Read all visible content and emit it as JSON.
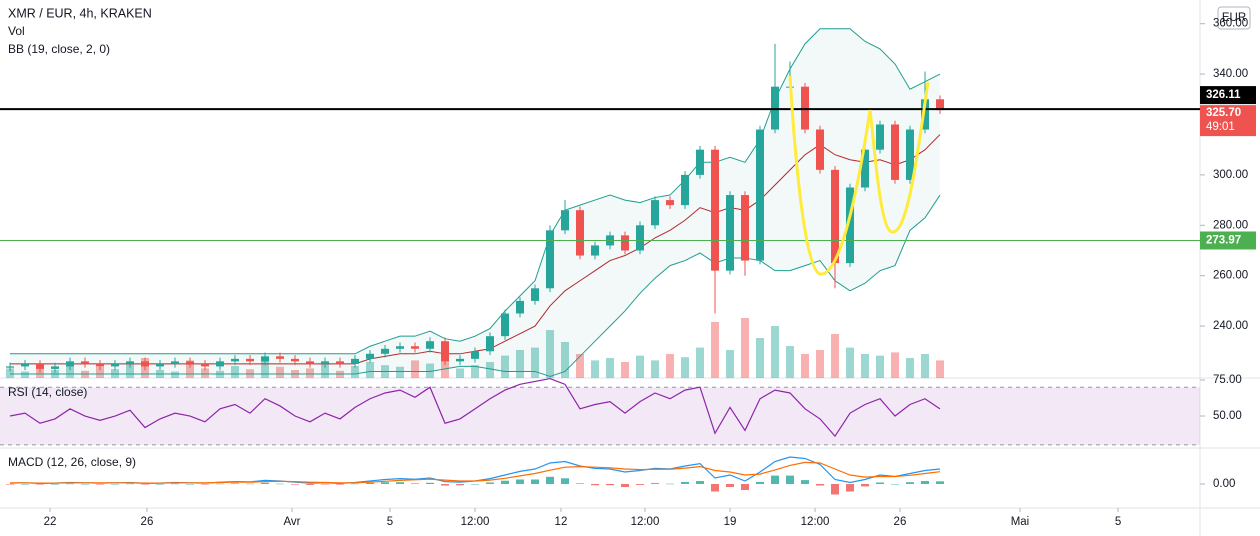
{
  "currency": "EUR",
  "chart_data": [
    {
      "type": "candlestick",
      "title": "XMR / EUR, 4h, KRAKEN",
      "xlim": [
        -0.667,
        79.333
      ],
      "xticks": [
        {
          "value": 2.67,
          "label": "22"
        },
        {
          "value": 9.13,
          "label": "26"
        },
        {
          "value": 18.8,
          "label": "Avr"
        },
        {
          "value": 25.33,
          "label": "5"
        },
        {
          "value": 31,
          "label": "12:00"
        },
        {
          "value": 36.73,
          "label": "12"
        },
        {
          "value": 42.33,
          "label": "12:00"
        },
        {
          "value": 48,
          "label": "19"
        },
        {
          "value": 53.67,
          "label": "12:00"
        },
        {
          "value": 59.33,
          "label": "26"
        },
        {
          "value": 67.33,
          "label": "Mai"
        },
        {
          "value": 73.87,
          "label": "5"
        }
      ],
      "ylim": [
        219.4,
        369.4
      ],
      "yticks": [
        {
          "value": 360,
          "label": "360.00"
        },
        {
          "value": 340,
          "label": "340.00"
        },
        {
          "value": 300,
          "label": "300.00"
        },
        {
          "value": 280,
          "label": "280.00"
        },
        {
          "value": 260,
          "label": "260.00"
        },
        {
          "value": 240,
          "label": "240.00"
        }
      ],
      "colors": {
        "up": "#26a69a",
        "down": "#ef5350"
      },
      "open": [
        223.5,
        224,
        225,
        223,
        224,
        226,
        225,
        224,
        225,
        226,
        224,
        225,
        226,
        225,
        224,
        226,
        227,
        226,
        228,
        227,
        226,
        225,
        226,
        225,
        227,
        229,
        231,
        232,
        231,
        234,
        226,
        227,
        230,
        236,
        245,
        250,
        255,
        278,
        286,
        268,
        272,
        276,
        270,
        280,
        290,
        288,
        300,
        310,
        262,
        292,
        266,
        318,
        335,
        335,
        318,
        302,
        265,
        295,
        310,
        320,
        298,
        318,
        330
      ],
      "high": [
        225.5,
        226.5,
        226.5,
        225.5,
        227.5,
        227.5,
        226.5,
        226.5,
        227.5,
        227.5,
        226.5,
        227.5,
        227.5,
        226.5,
        227.5,
        228.5,
        228.5,
        229.5,
        229.5,
        228.5,
        227.5,
        227.5,
        227.5,
        228.5,
        230.5,
        232.5,
        233.5,
        233.5,
        235.5,
        235.5,
        228.5,
        231.5,
        237.5,
        246.5,
        251.5,
        256.5,
        280,
        290,
        287.5,
        273.5,
        277.5,
        277.5,
        281.5,
        291.5,
        291.5,
        301.5,
        311.5,
        311.5,
        293.5,
        293.5,
        319.5,
        352,
        345,
        336.5,
        319.5,
        303.5,
        296.5,
        311.5,
        321.5,
        321.5,
        319.5,
        341,
        331.5
      ],
      "low": [
        222,
        222.5,
        221.5,
        221.5,
        222.5,
        223.5,
        222.5,
        222.5,
        223.5,
        222.5,
        222.5,
        223.5,
        223.5,
        222.5,
        222.5,
        224.5,
        224.5,
        224.5,
        225.5,
        224.5,
        223.5,
        223.5,
        223.5,
        223.5,
        225.5,
        227.5,
        229.5,
        229.5,
        229.5,
        224.5,
        224.5,
        225.5,
        228.5,
        234.5,
        243.5,
        248.5,
        253.5,
        276.5,
        266.5,
        266.5,
        270.5,
        268.5,
        268.5,
        278.5,
        286.5,
        286.5,
        298.5,
        245,
        260.5,
        260,
        264.5,
        316.5,
        333.5,
        316.5,
        300.5,
        255,
        263.5,
        293.5,
        308.5,
        296.5,
        296.5,
        316.5,
        324.2
      ],
      "close": [
        224,
        225,
        223,
        224,
        226,
        225,
        224,
        225,
        226,
        224,
        225,
        226,
        225,
        224,
        226,
        227,
        226,
        228,
        227,
        226,
        225,
        226,
        225,
        227,
        229,
        231,
        232,
        231,
        234,
        226,
        227,
        230,
        236,
        245,
        250,
        255,
        278,
        286,
        268,
        272,
        276,
        270,
        280,
        290,
        288,
        300,
        310,
        262,
        292,
        266,
        318,
        335,
        335,
        318,
        302,
        265,
        295,
        310,
        320,
        298,
        318,
        330,
        325.7
      ],
      "volume": {
        "name": "Vol",
        "ylim": [
          0,
          100
        ],
        "values": [
          12,
          8,
          15,
          10,
          20,
          9,
          14,
          11,
          18,
          25,
          10,
          8,
          22,
          12,
          9,
          15,
          11,
          26,
          14,
          10,
          12,
          18,
          9,
          15,
          20,
          16,
          14,
          22,
          18,
          25,
          12,
          16,
          20,
          28,
          35,
          38,
          60,
          45,
          30,
          22,
          25,
          20,
          28,
          22,
          30,
          26,
          38,
          70,
          35,
          75,
          50,
          65,
          40,
          30,
          35,
          55,
          38,
          30,
          28,
          32,
          25,
          30,
          22
        ]
      },
      "bollinger": {
        "name": "BB (19, close, 2, 0)",
        "band_color": "#1e9e8f",
        "middle_color": "#b4282e",
        "upper": [
          229,
          229,
          229,
          229,
          229,
          229,
          229,
          229,
          229,
          229,
          229,
          229,
          229,
          229,
          229,
          229,
          229,
          229,
          229,
          229,
          229,
          229,
          229,
          229,
          232,
          234,
          236,
          236,
          238,
          235,
          234,
          236,
          239,
          246,
          252,
          258,
          276,
          286,
          288,
          290,
          292,
          290,
          289,
          291,
          292,
          298,
          305,
          305,
          307,
          305,
          314,
          330,
          342,
          352,
          358,
          358,
          358,
          353,
          350,
          344,
          334,
          337,
          340
        ],
        "middle": [
          225,
          225,
          225,
          225,
          225,
          225,
          225,
          225,
          225,
          225,
          225,
          225,
          225,
          225,
          225,
          225,
          225,
          225,
          225,
          225,
          225,
          225,
          225,
          225,
          227,
          228,
          229,
          229,
          230,
          229,
          229,
          230,
          231,
          234,
          237,
          240,
          248,
          254,
          258,
          262,
          266,
          268,
          271,
          275,
          278,
          282,
          287,
          285,
          287,
          286,
          290,
          296,
          302,
          308,
          312,
          308,
          306,
          305,
          306,
          304,
          306,
          310,
          316
        ],
        "lower": [
          221,
          221,
          221,
          221,
          221,
          221,
          221,
          221,
          221,
          221,
          221,
          221,
          221,
          221,
          221,
          221,
          221,
          221,
          221,
          221,
          221,
          221,
          221,
          221,
          222,
          222,
          222,
          222,
          222,
          223,
          224,
          224,
          223,
          222,
          222,
          222,
          220,
          222,
          228,
          234,
          240,
          246,
          253,
          259,
          264,
          266,
          269,
          265,
          267,
          267,
          266,
          262,
          262,
          264,
          266,
          258,
          254,
          257,
          262,
          264,
          278,
          283,
          292
        ]
      },
      "hlines": [
        {
          "value": 326.11,
          "label": "326.11",
          "color": "#000000"
        },
        {
          "value": 273.97,
          "label": "273.97",
          "color": "#4caf50"
        }
      ],
      "last_price": {
        "value": 325.7,
        "label": "325.70",
        "countdown": "49:01",
        "color": "#ef5350"
      }
    },
    {
      "type": "line",
      "title": "RSI (14, close)",
      "color": "#8e24aa",
      "ylim": [
        27.8,
        76.4
      ],
      "yticks": [
        {
          "value": 75,
          "label": "75.00"
        },
        {
          "value": 50,
          "label": "50.00"
        }
      ],
      "bands": [
        70,
        30
      ],
      "values": [
        50,
        52,
        45,
        48,
        55,
        50,
        47,
        50,
        54,
        42,
        48,
        52,
        50,
        46,
        55,
        58,
        52,
        62,
        57,
        50,
        46,
        52,
        48,
        56,
        62,
        66,
        68,
        63,
        70,
        45,
        48,
        55,
        62,
        68,
        72,
        74,
        76,
        72,
        55,
        58,
        60,
        52,
        60,
        66,
        62,
        68,
        70,
        38,
        56,
        40,
        62,
        68,
        66,
        55,
        48,
        36,
        52,
        58,
        62,
        50,
        58,
        62,
        55
      ]
    },
    {
      "type": "macd",
      "title": "MACD (12, 26, close, 9)",
      "ylim": [
        -8,
        12
      ],
      "yticks": [
        {
          "value": 0,
          "label": "0.00"
        }
      ],
      "macd_color": "#2196f3",
      "signal_color": "#ff6d00",
      "macd": [
        0.3,
        0.4,
        0.2,
        0.3,
        0.5,
        0.4,
        0.3,
        0.4,
        0.5,
        0.2,
        0.3,
        0.5,
        0.4,
        0.3,
        0.6,
        0.8,
        0.7,
        1.2,
        1.0,
        0.6,
        0.3,
        0.4,
        0.2,
        0.5,
        1.0,
        1.5,
        1.8,
        1.6,
        2.0,
        0.8,
        0.6,
        1.0,
        1.8,
        3.0,
        4.2,
        5.0,
        7.0,
        7.5,
        6.0,
        5.2,
        5.0,
        4.0,
        4.5,
        5.2,
        5.0,
        6.0,
        6.8,
        2.0,
        3.0,
        1.0,
        4.0,
        7.5,
        9.0,
        8.5,
        6.5,
        1.5,
        0.5,
        1.5,
        3.0,
        2.5,
        3.5,
        4.5,
        5.0
      ],
      "signal": [
        0.4,
        0.4,
        0.3,
        0.3,
        0.4,
        0.4,
        0.4,
        0.4,
        0.4,
        0.3,
        0.3,
        0.4,
        0.4,
        0.4,
        0.5,
        0.6,
        0.6,
        0.8,
        0.9,
        0.8,
        0.6,
        0.5,
        0.4,
        0.4,
        0.6,
        0.9,
        1.2,
        1.4,
        1.6,
        1.3,
        1.0,
        1.0,
        1.3,
        1.9,
        2.7,
        3.5,
        4.6,
        5.6,
        5.8,
        5.6,
        5.4,
        5.0,
        4.8,
        4.9,
        4.9,
        5.3,
        5.8,
        4.5,
        4.0,
        3.0,
        3.3,
        4.7,
        6.2,
        7.2,
        7.0,
        5.0,
        3.0,
        2.3,
        2.5,
        2.5,
        2.9,
        3.5,
        4.1
      ],
      "histogram": [
        -0.1,
        0,
        -0.1,
        0,
        0.1,
        0,
        -0.1,
        0,
        0.1,
        -0.1,
        0,
        0.1,
        0,
        -0.1,
        0.1,
        0.2,
        0.1,
        0.4,
        0.1,
        -0.2,
        -0.3,
        -0.1,
        -0.2,
        0.1,
        0.4,
        0.6,
        0.6,
        0.2,
        0.4,
        -0.5,
        -0.4,
        0,
        0.5,
        1.1,
        1.5,
        1.5,
        2.4,
        1.9,
        0.2,
        -0.4,
        -0.4,
        -1.0,
        -0.3,
        0.3,
        0.1,
        0.7,
        1.0,
        -2.5,
        -1.0,
        -2.0,
        0.7,
        2.8,
        2.8,
        1.3,
        -0.5,
        -3.5,
        -2.5,
        -0.8,
        0.5,
        0,
        0.6,
        1.0,
        0.9
      ]
    }
  ]
}
